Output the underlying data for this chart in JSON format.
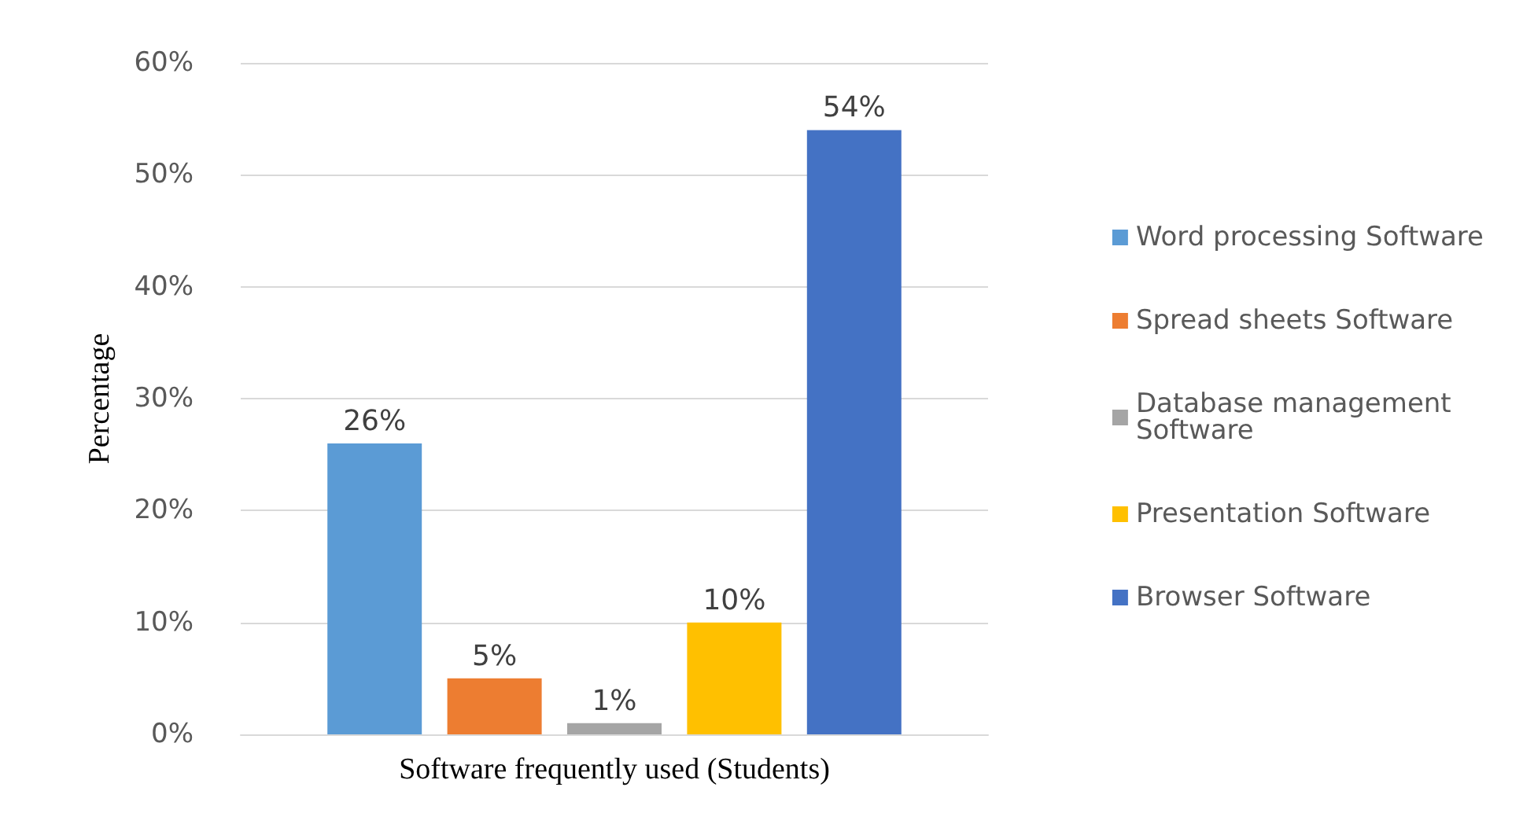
{
  "chart_data": {
    "type": "bar",
    "xlabel": "Software frequently used (Students)",
    "ylabel": "Percentage",
    "categories": [
      null
    ],
    "series": [
      {
        "name": "Word processing Software",
        "color": "#5b9bd5",
        "values": [
          26
        ],
        "value_labels": [
          "26%"
        ]
      },
      {
        "name": "Spread sheets Software",
        "color": "#ed7d31",
        "values": [
          5
        ],
        "value_labels": [
          "5%"
        ]
      },
      {
        "name": "Database management Software",
        "color": "#a5a5a5",
        "values": [
          1
        ],
        "value_labels": [
          "1%"
        ]
      },
      {
        "name": "Presentation Software",
        "color": "#ffc000",
        "values": [
          10
        ],
        "value_labels": [
          "10%"
        ]
      },
      {
        "name": "Browser Software",
        "color": "#4472c4",
        "values": [
          54
        ],
        "value_labels": [
          "54%"
        ]
      }
    ],
    "ylim": [
      0,
      60
    ],
    "yticks": [
      {
        "value": 0,
        "label": "0%"
      },
      {
        "value": 10,
        "label": "10%"
      },
      {
        "value": 20,
        "label": "20%"
      },
      {
        "value": 30,
        "label": "30%"
      },
      {
        "value": 40,
        "label": "40%"
      },
      {
        "value": 50,
        "label": "50%"
      },
      {
        "value": 60,
        "label": "60%"
      }
    ],
    "grid": "y",
    "legend": "right"
  }
}
